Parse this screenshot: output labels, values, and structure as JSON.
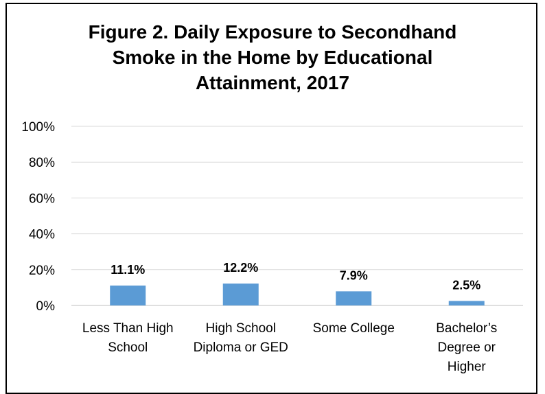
{
  "chart_data": {
    "type": "bar",
    "title": "Figure 2. Daily Exposure to Secondhand\nSmoke in the Home by Educational\nAttainment, 2017",
    "categories": [
      [
        "Less Than High",
        "School"
      ],
      [
        "High School",
        "Diploma or GED"
      ],
      [
        "Some College"
      ],
      [
        "Bachelor’s",
        "Degree or",
        "Higher"
      ]
    ],
    "values": [
      11.1,
      12.2,
      7.9,
      2.5
    ],
    "data_labels": [
      "11.1%",
      "12.2%",
      "7.9%",
      "2.5%"
    ],
    "ylim": [
      0,
      100
    ],
    "yticks": [
      0,
      20,
      40,
      60,
      80,
      100
    ],
    "ytick_labels": [
      "0%",
      "20%",
      "40%",
      "60%",
      "80%",
      "100%"
    ],
    "xlabel": "",
    "ylabel": "",
    "grid": true,
    "legend": "none",
    "colors": {
      "bar": "#5B9BD5",
      "grid": "#D9D9D9",
      "axis": "#BFBFBF",
      "border": "#000000"
    }
  }
}
